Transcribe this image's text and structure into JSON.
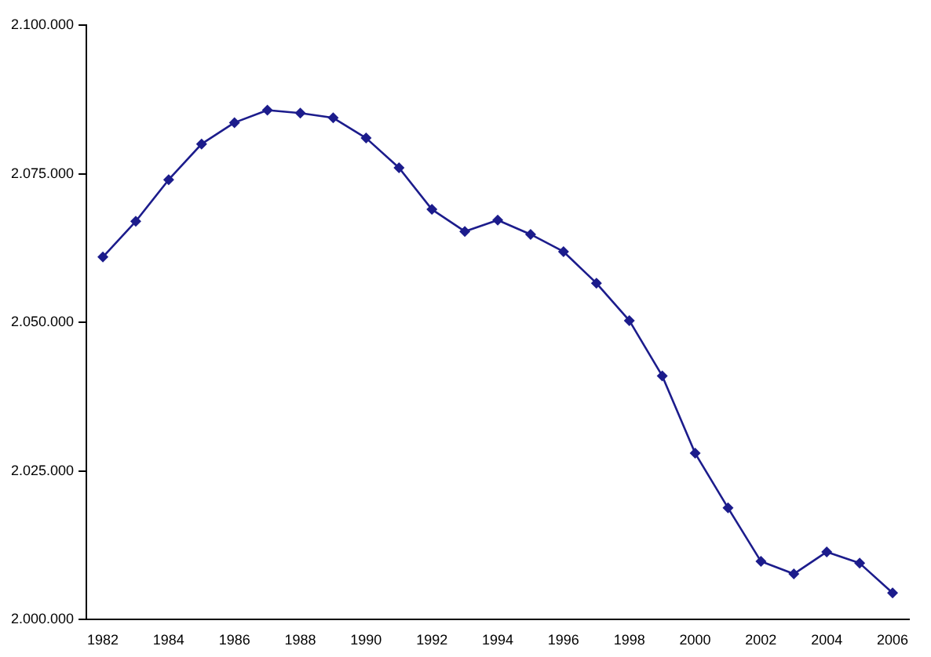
{
  "chart_data": {
    "type": "line",
    "categories": [
      "1982",
      null,
      "1984",
      null,
      "1986",
      null,
      "1988",
      null,
      "1990",
      null,
      "1992",
      null,
      "1994",
      null,
      "1996",
      null,
      "1998",
      null,
      "2000",
      null,
      "2002",
      null,
      "2004",
      null,
      "2006"
    ],
    "series": [
      {
        "color": "#1c1c8c",
        "values": [
          2061000,
          2067000,
          2074000,
          2080000,
          2083600,
          2085700,
          2085200,
          2084400,
          2081000,
          2076000,
          2069000,
          2065300,
          2067200,
          2064800,
          2061900,
          2056600,
          2050300,
          2041000,
          2028000,
          2018800,
          2009800,
          2007700,
          2011400,
          2009500,
          2004500
        ]
      }
    ],
    "ylim": [
      2000000,
      2100000
    ],
    "yticks": [
      {
        "value": 2000000,
        "label": "2.000.000"
      },
      {
        "value": 2025000,
        "label": "2.025.000"
      },
      {
        "value": 2050000,
        "label": "2.050.000"
      },
      {
        "value": 2075000,
        "label": "2.075.000"
      },
      {
        "value": 2100000,
        "label": "2.100.000"
      }
    ],
    "grid": false,
    "legend": false,
    "marker": "diamond",
    "line_style": "solid"
  }
}
